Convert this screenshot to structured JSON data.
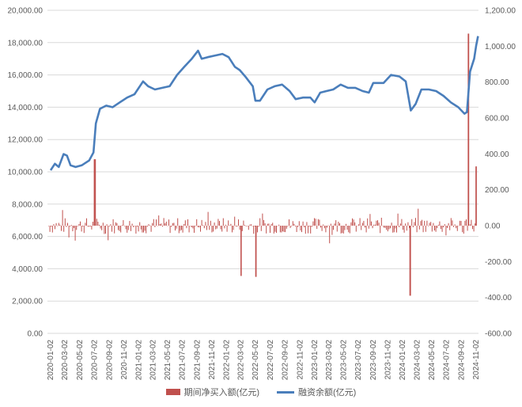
{
  "chart_data": {
    "type": "bar+line",
    "left_axis": {
      "ticks": [
        "0.00",
        "2,000.00",
        "4,000.00",
        "6,000.00",
        "8,000.00",
        "10,000.00",
        "12,000.00",
        "14,000.00",
        "16,000.00",
        "18,000.00",
        "20,000.00"
      ],
      "range": [
        0,
        20000
      ]
    },
    "right_axis": {
      "ticks": [
        "-600.00",
        "-400.00",
        "-200.00",
        "0.00",
        "200.00",
        "400.00",
        "600.00",
        "800.00",
        "1,000.00",
        "1,200.00"
      ],
      "range": [
        -600,
        1200
      ]
    },
    "x_ticks": [
      "2020-01-02",
      "2020-03-02",
      "2020-05-02",
      "2020-07-02",
      "2020-09-02",
      "2020-11-02",
      "2021-01-02",
      "2021-03-02",
      "2021-05-02",
      "2021-07-02",
      "2021-09-02",
      "2021-11-02",
      "2022-01-02",
      "2022-03-02",
      "2022-05-02",
      "2022-07-02",
      "2022-09-02",
      "2022-11-02",
      "2023-01-02",
      "2023-03-02",
      "2023-05-02",
      "2023-07-02",
      "2023-09-02",
      "2023-11-02",
      "2024-01-02",
      "2024-03-02",
      "2024-05-02",
      "2024-07-02",
      "2024-09-02",
      "2024-11-02"
    ],
    "series": [
      {
        "name": "期间净买入额(亿元)",
        "type": "bar",
        "axis": "right",
        "color": "#c0504d",
        "sampled": true,
        "approx_range": [
          -390,
          1070
        ],
        "notable_points": [
          {
            "x": "2020-07-02",
            "value": 370
          },
          {
            "x": "2022-03-02",
            "value": -280
          },
          {
            "x": "2022-05-02",
            "value": -285
          },
          {
            "x": "2024-02-01",
            "value": -390
          },
          {
            "x": "2024-09-30",
            "value": 1070
          },
          {
            "x": "2024-11-01",
            "value": 330
          }
        ]
      },
      {
        "name": "融资余额(亿元)",
        "type": "line",
        "axis": "left",
        "color": "#4a7ebb",
        "points": [
          {
            "x": "2020-01-02",
            "y": 10100
          },
          {
            "x": "2020-01-20",
            "y": 10500
          },
          {
            "x": "2020-02-05",
            "y": 10300
          },
          {
            "x": "2020-02-25",
            "y": 11100
          },
          {
            "x": "2020-03-10",
            "y": 11000
          },
          {
            "x": "2020-03-25",
            "y": 10400
          },
          {
            "x": "2020-04-15",
            "y": 10300
          },
          {
            "x": "2020-05-10",
            "y": 10400
          },
          {
            "x": "2020-06-10",
            "y": 10700
          },
          {
            "x": "2020-06-28",
            "y": 11200
          },
          {
            "x": "2020-07-08",
            "y": 13000
          },
          {
            "x": "2020-07-25",
            "y": 13900
          },
          {
            "x": "2020-08-20",
            "y": 14100
          },
          {
            "x": "2020-09-15",
            "y": 14000
          },
          {
            "x": "2020-10-15",
            "y": 14300
          },
          {
            "x": "2020-11-15",
            "y": 14600
          },
          {
            "x": "2020-12-15",
            "y": 14800
          },
          {
            "x": "2021-01-20",
            "y": 15600
          },
          {
            "x": "2021-02-10",
            "y": 15300
          },
          {
            "x": "2021-03-10",
            "y": 15100
          },
          {
            "x": "2021-04-10",
            "y": 15200
          },
          {
            "x": "2021-05-10",
            "y": 15300
          },
          {
            "x": "2021-06-10",
            "y": 16000
          },
          {
            "x": "2021-07-10",
            "y": 16500
          },
          {
            "x": "2021-08-10",
            "y": 17000
          },
          {
            "x": "2021-09-05",
            "y": 17500
          },
          {
            "x": "2021-09-20",
            "y": 17000
          },
          {
            "x": "2021-10-15",
            "y": 17100
          },
          {
            "x": "2021-11-15",
            "y": 17200
          },
          {
            "x": "2021-12-15",
            "y": 17300
          },
          {
            "x": "2022-01-10",
            "y": 17100
          },
          {
            "x": "2022-02-05",
            "y": 16500
          },
          {
            "x": "2022-02-25",
            "y": 16300
          },
          {
            "x": "2022-03-20",
            "y": 15900
          },
          {
            "x": "2022-04-20",
            "y": 15300
          },
          {
            "x": "2022-05-01",
            "y": 14400
          },
          {
            "x": "2022-05-20",
            "y": 14400
          },
          {
            "x": "2022-06-20",
            "y": 15100
          },
          {
            "x": "2022-07-20",
            "y": 15300
          },
          {
            "x": "2022-08-20",
            "y": 15400
          },
          {
            "x": "2022-09-20",
            "y": 15000
          },
          {
            "x": "2022-10-15",
            "y": 14500
          },
          {
            "x": "2022-11-15",
            "y": 14600
          },
          {
            "x": "2022-12-15",
            "y": 14600
          },
          {
            "x": "2023-01-02",
            "y": 14300
          },
          {
            "x": "2023-01-25",
            "y": 14900
          },
          {
            "x": "2023-02-20",
            "y": 15000
          },
          {
            "x": "2023-03-20",
            "y": 15100
          },
          {
            "x": "2023-04-20",
            "y": 15400
          },
          {
            "x": "2023-05-20",
            "y": 15200
          },
          {
            "x": "2023-06-20",
            "y": 15200
          },
          {
            "x": "2023-07-20",
            "y": 15000
          },
          {
            "x": "2023-08-15",
            "y": 14900
          },
          {
            "x": "2023-09-02",
            "y": 15500
          },
          {
            "x": "2023-10-15",
            "y": 15500
          },
          {
            "x": "2023-11-15",
            "y": 16000
          },
          {
            "x": "2023-12-20",
            "y": 15900
          },
          {
            "x": "2024-01-15",
            "y": 15600
          },
          {
            "x": "2024-02-05",
            "y": 13800
          },
          {
            "x": "2024-02-25",
            "y": 14200
          },
          {
            "x": "2024-03-20",
            "y": 15100
          },
          {
            "x": "2024-04-20",
            "y": 15100
          },
          {
            "x": "2024-05-20",
            "y": 15000
          },
          {
            "x": "2024-06-20",
            "y": 14700
          },
          {
            "x": "2024-07-20",
            "y": 14300
          },
          {
            "x": "2024-08-20",
            "y": 14000
          },
          {
            "x": "2024-09-15",
            "y": 13600
          },
          {
            "x": "2024-09-25",
            "y": 13700
          },
          {
            "x": "2024-10-08",
            "y": 16200
          },
          {
            "x": "2024-10-25",
            "y": 17000
          },
          {
            "x": "2024-11-02",
            "y": 17800
          },
          {
            "x": "2024-11-10",
            "y": 18400
          }
        ]
      }
    ],
    "grid": true,
    "legend_position": "bottom"
  },
  "legend": {
    "bar_label": "期间净买入额(亿元)",
    "line_label": "融资余额(亿元)"
  }
}
